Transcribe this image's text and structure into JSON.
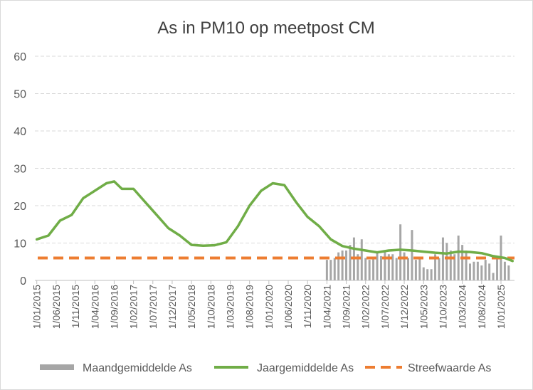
{
  "chart_data": {
    "type": "line",
    "title": "As in PM10 op meetpost CM",
    "xlabel": "",
    "ylabel": "",
    "ylim": [
      0,
      60
    ],
    "yticks": [
      "0",
      "10",
      "20",
      "30",
      "40",
      "50",
      "60"
    ],
    "grid": true,
    "legend_position": "bottom",
    "x_start": "1/01/2015",
    "x_end": "1/04/2025",
    "xtick_labels": [
      "1/01/2015",
      "1/06/2015",
      "1/11/2015",
      "1/04/2016",
      "1/09/2016",
      "1/02/2017",
      "1/07/2017",
      "1/12/2017",
      "1/05/2018",
      "1/10/2018",
      "1/03/2019",
      "1/08/2019",
      "1/01/2020",
      "1/06/2020",
      "1/11/2020",
      "1/04/2021",
      "1/09/2021",
      "1/02/2022",
      "1/07/2022",
      "1/12/2022",
      "1/05/2023",
      "1/10/2023",
      "1/03/2024",
      "1/08/2024",
      "1/01/2025"
    ],
    "series": [
      {
        "name": "Maandgemiddelde As",
        "kind": "bar",
        "color": "#a6a6a6",
        "x": [
          "1/04/2021",
          "1/05/2021",
          "1/06/2021",
          "1/07/2021",
          "1/08/2021",
          "1/09/2021",
          "1/10/2021",
          "1/11/2021",
          "1/12/2021",
          "1/01/2022",
          "1/02/2022",
          "1/03/2022",
          "1/04/2022",
          "1/05/2022",
          "1/06/2022",
          "1/07/2022",
          "1/08/2022",
          "1/09/2022",
          "1/10/2022",
          "1/11/2022",
          "1/12/2022",
          "1/01/2023",
          "1/02/2023",
          "1/03/2023",
          "1/04/2023",
          "1/05/2023",
          "1/06/2023",
          "1/07/2023",
          "1/08/2023",
          "1/09/2023",
          "1/10/2023",
          "1/11/2023",
          "1/12/2023",
          "1/01/2024",
          "1/02/2024",
          "1/03/2024",
          "1/04/2024",
          "1/05/2024",
          "1/06/2024",
          "1/07/2024",
          "1/08/2024",
          "1/09/2024",
          "1/10/2024",
          "1/11/2024",
          "1/12/2024",
          "1/01/2025",
          "1/02/2025",
          "1/03/2025"
        ],
        "values": [
          5.5,
          5.5,
          6,
          7.5,
          8,
          8,
          9.5,
          11.5,
          7,
          11,
          6,
          5.5,
          6,
          7.5,
          6.5,
          8,
          7,
          7,
          6,
          15,
          7.5,
          6,
          13.5,
          5.5,
          6,
          3.5,
          3,
          3,
          7,
          6,
          11.5,
          10,
          8,
          7,
          12,
          9.5,
          8,
          4.5,
          5,
          5,
          4,
          5.5,
          4.5,
          2,
          6.5,
          12,
          5,
          4
        ]
      },
      {
        "name": "Jaargemiddelde As",
        "kind": "line",
        "color": "#70ad47",
        "x": [
          "1/01/2015",
          "1/04/2015",
          "1/07/2015",
          "1/10/2015",
          "1/01/2016",
          "1/04/2016",
          "1/07/2016",
          "1/09/2016",
          "1/11/2016",
          "1/02/2017",
          "1/05/2017",
          "1/08/2017",
          "1/11/2017",
          "1/02/2018",
          "1/05/2018",
          "1/08/2018",
          "1/11/2018",
          "1/02/2019",
          "1/05/2019",
          "1/08/2019",
          "1/11/2019",
          "1/02/2020",
          "1/05/2020",
          "1/08/2020",
          "1/11/2020",
          "1/02/2021",
          "1/05/2021",
          "1/08/2021",
          "1/11/2021",
          "1/02/2022",
          "1/05/2022",
          "1/08/2022",
          "1/11/2022",
          "1/02/2023",
          "1/05/2023",
          "1/08/2023",
          "1/11/2023",
          "1/02/2024",
          "1/05/2024",
          "1/08/2024",
          "1/11/2024",
          "1/02/2025",
          "1/04/2025"
        ],
        "values": [
          11,
          12,
          16,
          17.5,
          22,
          24,
          26,
          26.5,
          24.5,
          24.5,
          21,
          17.5,
          14,
          12,
          9.5,
          9.3,
          9.4,
          10.2,
          14.5,
          20,
          24,
          26,
          25.5,
          21,
          17,
          14.5,
          11,
          9.2,
          8.5,
          8,
          7.5,
          8,
          8.2,
          8,
          7.7,
          7.4,
          7.2,
          7.7,
          7.6,
          7.3,
          6.5,
          6,
          5.2
        ]
      },
      {
        "name": "Streefwaarde As",
        "kind": "line",
        "style": "dashed",
        "color": "#ed7d31",
        "x": [
          "1/01/2015",
          "1/04/2025"
        ],
        "values": [
          6,
          6
        ]
      }
    ]
  },
  "colors": {
    "grid": "#d9d9d9",
    "axis": "#bfbfbf"
  }
}
